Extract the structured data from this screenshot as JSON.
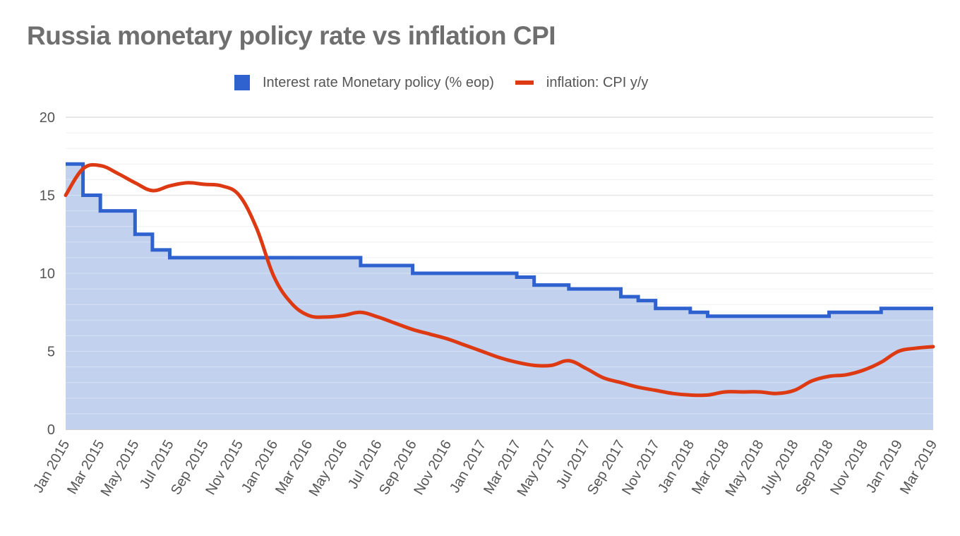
{
  "title": "Russia monetary policy rate vs inflation CPI",
  "colors": {
    "rate": "#2f62cf",
    "rate_fill": "#c2d1ee",
    "inflation": "#dd3a13",
    "grid": "#d9d9d9",
    "grid_minor": "#ececec"
  },
  "legend": [
    {
      "label": "Interest rate Monetary policy (% eop)",
      "marker": "square"
    },
    {
      "label": "inflation: CPI y/y",
      "marker": "line"
    }
  ],
  "chart_data": {
    "type": "line",
    "title": "Russia monetary policy rate vs inflation CPI",
    "xlabel": "",
    "ylabel": "",
    "ylim": [
      0,
      20
    ],
    "yticks": [
      0,
      5,
      10,
      15,
      20
    ],
    "grid": true,
    "legend_position": "top",
    "x": [
      "Jan 2015",
      "Feb 2015",
      "Mar 2015",
      "Apr 2015",
      "May 2015",
      "Jun 2015",
      "Jul 2015",
      "Aug 2015",
      "Sep 2015",
      "Oct 2015",
      "Nov 2015",
      "Dec 2015",
      "Jan 2016",
      "Feb 2016",
      "Mar 2016",
      "Apr 2016",
      "May 2016",
      "Jun 2016",
      "Jul 2016",
      "Aug 2016",
      "Sep 2016",
      "Oct 2016",
      "Nov 2016",
      "Dec 2016",
      "Jan 2017",
      "Feb 2017",
      "Mar 2017",
      "Apr 2017",
      "May 2017",
      "Jun 2017",
      "Jul 2017",
      "Aug 2017",
      "Sep 2017",
      "Oct 2017",
      "Nov 2017",
      "Dec 2017",
      "Jan 2018",
      "Feb 2018",
      "Mar 2018",
      "Apr 2018",
      "May 2018",
      "Jun 2018",
      "July 2018",
      "Aug 2018",
      "Sep 2018",
      "Oct 2018",
      "Nov 2018",
      "Dec 2018",
      "Jan 2019",
      "Feb 2019",
      "Mar 2019"
    ],
    "x_tick_labels": [
      "Jan 2015",
      "Mar 2015",
      "May 2015",
      "Jul 2015",
      "Sep 2015",
      "Nov 2015",
      "Jan 2016",
      "Mar 2016",
      "May 2016",
      "Jul 2016",
      "Sep 2016",
      "Nov 2016",
      "Jan 2017",
      "Mar 2017",
      "May 2017",
      "Jul 2017",
      "Sep 2017",
      "Nov 2017",
      "Jan 2018",
      "Mar 2018",
      "May 2018",
      "July 2018",
      "Sep 2018",
      "Nov 2018",
      "Jan 2019",
      "Mar 2019"
    ],
    "series": [
      {
        "name": "Interest rate Monetary policy (% eop)",
        "style": "step-area",
        "values": [
          17,
          15,
          14,
          14,
          12.5,
          11.5,
          11,
          11,
          11,
          11,
          11,
          11,
          11,
          11,
          11,
          11,
          11,
          10.5,
          10.5,
          10.5,
          10,
          10,
          10,
          10,
          10,
          10,
          9.75,
          9.25,
          9.25,
          9,
          9,
          9,
          8.5,
          8.25,
          7.75,
          7.75,
          7.5,
          7.25,
          7.25,
          7.25,
          7.25,
          7.25,
          7.25,
          7.25,
          7.5,
          7.5,
          7.5,
          7.75,
          7.75,
          7.75,
          7.75
        ]
      },
      {
        "name": "inflation: CPI y/y",
        "style": "line",
        "values": [
          15.0,
          16.7,
          16.9,
          16.4,
          15.8,
          15.3,
          15.6,
          15.8,
          15.7,
          15.6,
          15.0,
          12.9,
          9.8,
          8.1,
          7.3,
          7.2,
          7.3,
          7.5,
          7.2,
          6.8,
          6.4,
          6.1,
          5.8,
          5.4,
          5.0,
          4.6,
          4.3,
          4.1,
          4.1,
          4.4,
          3.9,
          3.3,
          3.0,
          2.7,
          2.5,
          2.3,
          2.2,
          2.2,
          2.4,
          2.4,
          2.4,
          2.3,
          2.5,
          3.1,
          3.4,
          3.5,
          3.8,
          4.3,
          5.0,
          5.2,
          5.3
        ]
      }
    ]
  }
}
